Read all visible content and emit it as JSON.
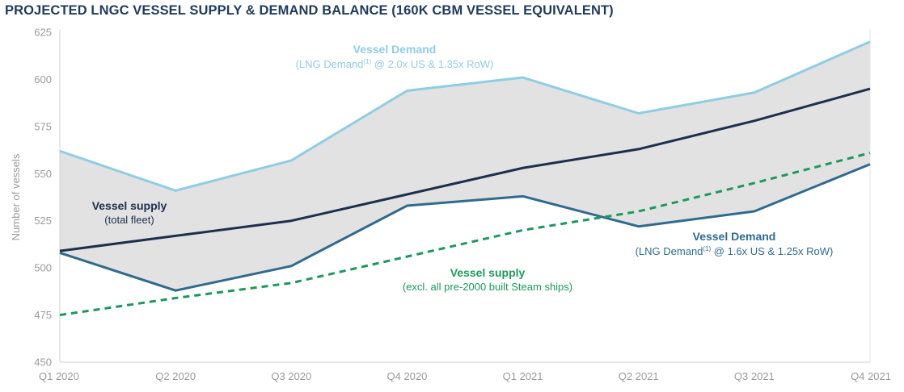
{
  "title": "PROJECTED LNGC VESSEL SUPPLY & DEMAND BALANCE (160K CBM VESSEL EQUIVALENT)",
  "chart_data": {
    "type": "line",
    "title": "PROJECTED LNGC VESSEL SUPPLY & DEMAND BALANCE (160K CBM VESSEL EQUIVALENT)",
    "xlabel": "",
    "ylabel": "Number of vessels",
    "ylim": [
      450,
      625
    ],
    "yticks": [
      "450",
      "475",
      "500",
      "525",
      "550",
      "575",
      "600",
      "625"
    ],
    "categories": [
      "Q1 2020",
      "Q2 2020",
      "Q3 2020",
      "Q4 2020",
      "Q1 2021",
      "Q2 2021",
      "Q3 2021",
      "Q4 2021"
    ],
    "grid": false,
    "shaded_band": "between high and low vessel demand",
    "series": [
      {
        "key": "demand_high",
        "color": "#8fcde4",
        "style": "solid",
        "values": [
          562,
          541,
          557,
          594,
          601,
          582,
          593,
          620
        ]
      },
      {
        "key": "supply_total",
        "color": "#1c2f4d",
        "style": "solid",
        "values": [
          509,
          517,
          525,
          539,
          553,
          563,
          578,
          595
        ]
      },
      {
        "key": "demand_low",
        "color": "#2f6b8e",
        "style": "solid",
        "values": [
          508,
          488,
          501,
          533,
          538,
          522,
          530,
          555
        ]
      },
      {
        "key": "supply_excl_steam",
        "color": "#1a9a5a",
        "style": "dashed",
        "values": [
          475,
          484,
          492,
          506,
          520,
          530,
          545,
          561
        ]
      }
    ],
    "annotations": {
      "demand_high": {
        "title": "Vessel Demand",
        "pre": "(LNG Demand",
        "sup": "(1)",
        "post": " @ 2.0x US & 1.35x RoW)"
      },
      "supply_total": {
        "title": "Vessel supply",
        "sub": "(total fleet)"
      },
      "demand_low": {
        "title": "Vessel Demand",
        "pre": "(LNG Demand",
        "sup": "(1)",
        "post": " @ 1.6x US & 1.25x RoW)"
      },
      "supply_excl_steam": {
        "title": "Vessel supply",
        "sub": "(excl. all pre-2000 built Steam ships)"
      }
    }
  }
}
